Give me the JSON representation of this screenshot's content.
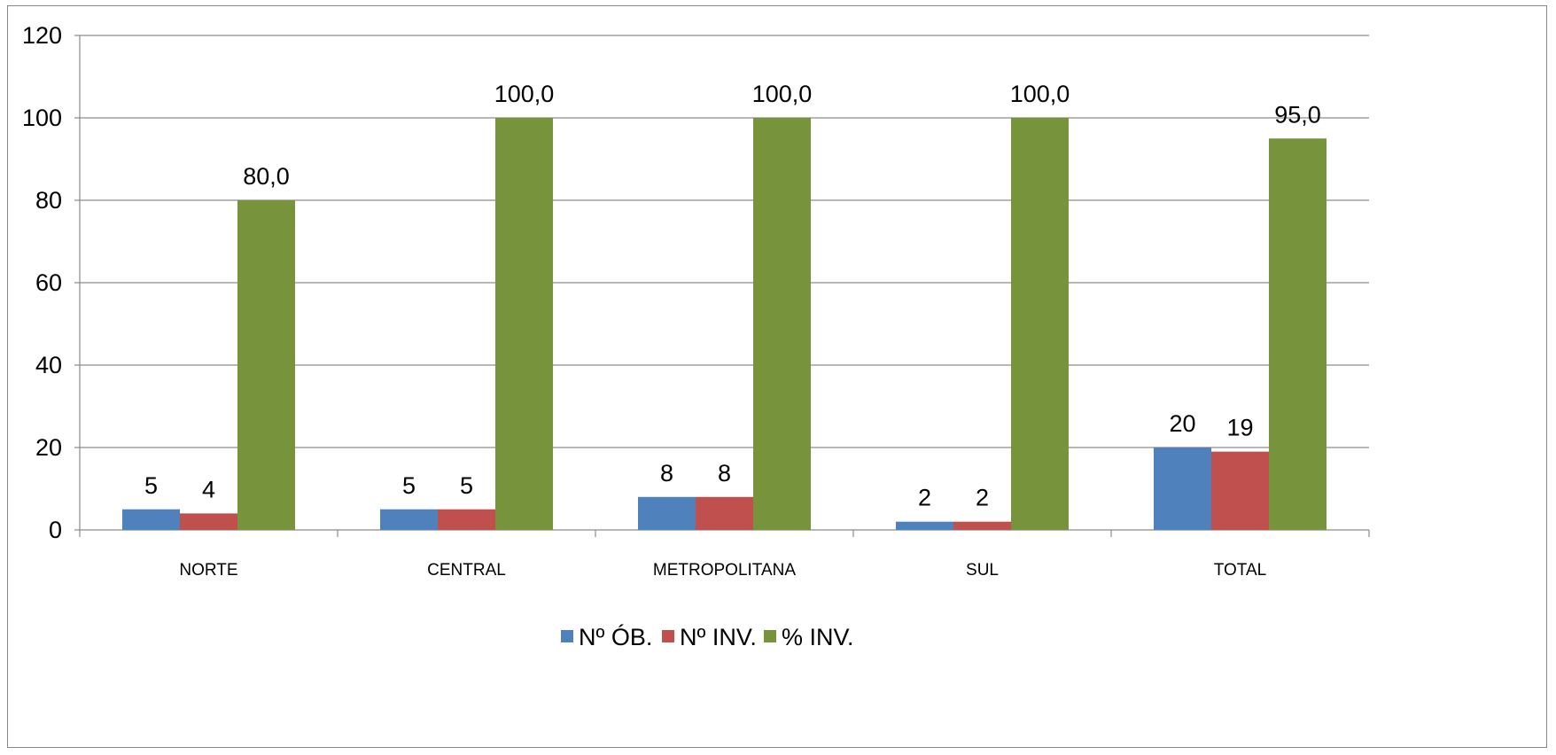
{
  "chart_data": {
    "type": "bar",
    "categories": [
      "NORTE",
      "CENTRAL",
      "METROPOLITANA",
      "SUL",
      "TOTAL"
    ],
    "series": [
      {
        "name": "Nº ÓB.",
        "color": "#4F81BD",
        "values": [
          5,
          5,
          8,
          2,
          20
        ],
        "labels": [
          "5",
          "5",
          "8",
          "2",
          "20"
        ]
      },
      {
        "name": "Nº INV.",
        "color": "#C0504D",
        "values": [
          4,
          5,
          8,
          2,
          19
        ],
        "labels": [
          "4",
          "5",
          "8",
          "2",
          "19"
        ]
      },
      {
        "name": "% INV.",
        "color": "#77933C",
        "values": [
          80.0,
          100.0,
          100.0,
          100.0,
          95.0
        ],
        "labels": [
          "80,0",
          "100,0",
          "100,0",
          "100,0",
          "95,0"
        ]
      }
    ],
    "ylim": [
      0,
      120
    ],
    "yticks": [
      "0",
      "20",
      "40",
      "60",
      "80",
      "100",
      "120"
    ],
    "grid": true,
    "legend_position": "bottom"
  }
}
